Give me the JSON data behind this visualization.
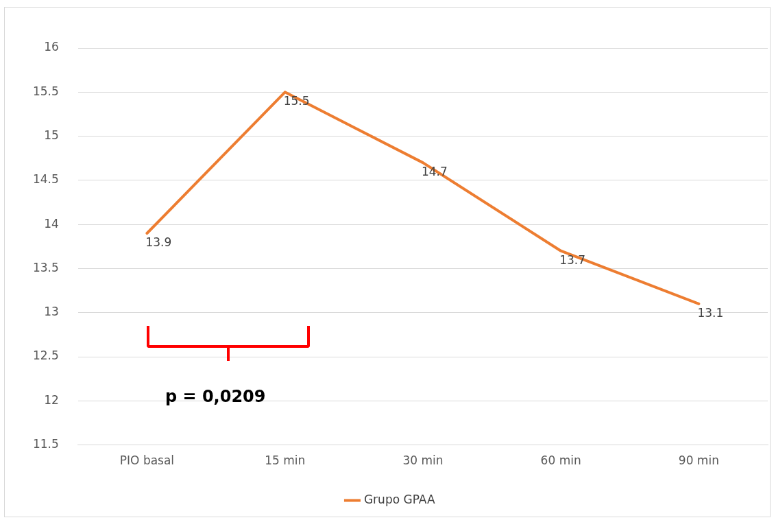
{
  "chart_data": {
    "type": "line",
    "categories": [
      "PIO basal",
      "15 min",
      "30 min",
      "60 min",
      "90 min"
    ],
    "series": [
      {
        "name": "Grupo GPAA",
        "color": "#ed7d31",
        "values": [
          13.9,
          15.5,
          14.7,
          13.7,
          13.1
        ]
      }
    ],
    "ylim": [
      11.5,
      16
    ],
    "yticks": [
      11.5,
      12,
      12.5,
      13,
      13.5,
      14,
      14.5,
      15,
      15.5,
      16
    ],
    "grid": "y",
    "legend": "bottom",
    "marker": "none",
    "line_style": "solid",
    "data_labels": true,
    "annotations": [
      "p = 0,0209"
    ]
  }
}
